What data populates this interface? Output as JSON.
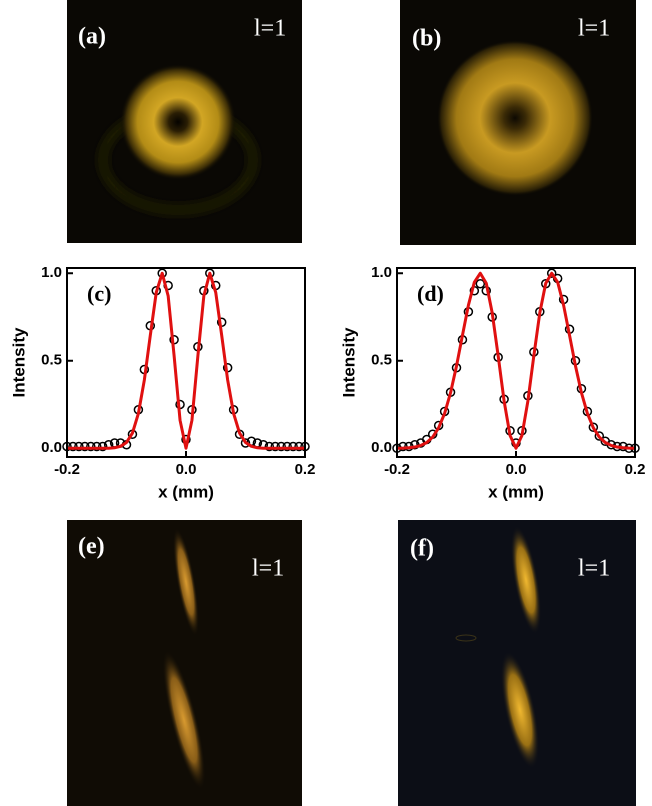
{
  "panels": [
    {
      "label": "(a)",
      "tag": "l=1"
    },
    {
      "label": "(b)",
      "tag": "l=1"
    },
    {
      "label": "(e)",
      "tag": "l=1"
    },
    {
      "label": "(f)",
      "tag": "l=1"
    }
  ],
  "chart_data": [
    {
      "type": "scatter",
      "panel_label": "(c)",
      "x_label": "x (mm)",
      "y_label": "Intensity",
      "xlim": [
        -0.2,
        0.2
      ],
      "ylim": [
        -0.05,
        1.03
      ],
      "xticks": [
        -0.2,
        {
          "value": 0,
          "label": "0.0"
        },
        0.2
      ],
      "yticks": [
        {
          "value": 0,
          "label": "0.0"
        },
        0.5,
        {
          "value": 1,
          "label": "1.0"
        }
      ],
      "series": [
        {
          "marker": "circle",
          "color": "#000000",
          "x": [
            -0.2,
            -0.19,
            -0.18,
            -0.17,
            -0.16,
            -0.15,
            -0.14,
            -0.13,
            -0.12,
            -0.11,
            -0.1,
            -0.09,
            -0.08,
            -0.07,
            -0.06,
            -0.05,
            -0.04,
            -0.03,
            -0.02,
            -0.01,
            0,
            0.01,
            0.02,
            0.03,
            0.04,
            0.05,
            0.06,
            0.07,
            0.08,
            0.09,
            0.1,
            0.11,
            0.12,
            0.13,
            0.14,
            0.15,
            0.16,
            0.17,
            0.18,
            0.19,
            0.2
          ],
          "values": [
            0.01,
            0.01,
            0.01,
            0.01,
            0.01,
            0.01,
            0.01,
            0.02,
            0.03,
            0.03,
            0.02,
            0.08,
            0.22,
            0.45,
            0.7,
            0.9,
            1.0,
            0.93,
            0.62,
            0.25,
            0.05,
            0.22,
            0.58,
            0.9,
            1.0,
            0.93,
            0.72,
            0.46,
            0.22,
            0.08,
            0.03,
            0.04,
            0.03,
            0.02,
            0.01,
            0.01,
            0.01,
            0.01,
            0.01,
            0.01,
            0.01
          ]
        },
        {
          "marker": "line",
          "color": "#e01010",
          "x": [
            -0.2,
            -0.19,
            -0.18,
            -0.17,
            -0.16,
            -0.15,
            -0.14,
            -0.13,
            -0.12,
            -0.11,
            -0.1,
            -0.09,
            -0.08,
            -0.07,
            -0.06,
            -0.05,
            -0.04,
            -0.03,
            -0.02,
            -0.01,
            0,
            0.01,
            0.02,
            0.03,
            0.04,
            0.05,
            0.06,
            0.07,
            0.08,
            0.09,
            0.1,
            0.11,
            0.12,
            0.13,
            0.14,
            0.15,
            0.16,
            0.17,
            0.18,
            0.19,
            0.2
          ],
          "values": [
            0,
            0,
            0,
            0,
            0,
            0,
            0,
            0,
            0.003,
            0.011,
            0.033,
            0.087,
            0.199,
            0.39,
            0.645,
            0.89,
            1.0,
            0.871,
            0.529,
            0.16,
            0,
            0.16,
            0.529,
            0.871,
            1.0,
            0.89,
            0.645,
            0.39,
            0.199,
            0.087,
            0.033,
            0.011,
            0.003,
            0,
            0,
            0,
            0,
            0,
            0,
            0,
            0
          ]
        }
      ]
    },
    {
      "type": "scatter",
      "panel_label": "(d)",
      "x_label": "x (mm)",
      "y_label": "Intensity",
      "xlim": [
        -0.2,
        0.2
      ],
      "ylim": [
        -0.05,
        1.03
      ],
      "xticks": [
        -0.2,
        {
          "value": 0,
          "label": "0.0"
        },
        0.2
      ],
      "yticks": [
        {
          "value": 0,
          "label": "0.0"
        },
        0.5,
        {
          "value": 1,
          "label": "1.0"
        }
      ],
      "series": [
        {
          "marker": "circle",
          "color": "#000000",
          "x": [
            -0.2,
            -0.19,
            -0.18,
            -0.17,
            -0.16,
            -0.15,
            -0.14,
            -0.13,
            -0.12,
            -0.11,
            -0.1,
            -0.09,
            -0.08,
            -0.07,
            -0.06,
            -0.05,
            -0.04,
            -0.03,
            -0.02,
            -0.01,
            0,
            0.01,
            0.02,
            0.03,
            0.04,
            0.05,
            0.06,
            0.07,
            0.08,
            0.09,
            0.1,
            0.11,
            0.12,
            0.13,
            0.14,
            0.15,
            0.16,
            0.17,
            0.18,
            0.19,
            0.2
          ],
          "values": [
            0,
            0.01,
            0.01,
            0.02,
            0.03,
            0.05,
            0.08,
            0.13,
            0.21,
            0.32,
            0.46,
            0.62,
            0.78,
            0.9,
            0.94,
            0.9,
            0.75,
            0.52,
            0.28,
            0.1,
            0.03,
            0.1,
            0.3,
            0.55,
            0.78,
            0.94,
            1.0,
            0.97,
            0.85,
            0.68,
            0.5,
            0.34,
            0.21,
            0.12,
            0.07,
            0.04,
            0.02,
            0.01,
            0.01,
            0,
            0
          ]
        },
        {
          "marker": "line",
          "color": "#e01010",
          "x": [
            -0.2,
            -0.19,
            -0.18,
            -0.17,
            -0.16,
            -0.15,
            -0.14,
            -0.13,
            -0.12,
            -0.11,
            -0.1,
            -0.09,
            -0.08,
            -0.07,
            -0.06,
            -0.05,
            -0.04,
            -0.03,
            -0.02,
            -0.01,
            0,
            0.01,
            0.02,
            0.03,
            0.04,
            0.05,
            0.06,
            0.07,
            0.08,
            0.09,
            0.1,
            0.11,
            0.12,
            0.13,
            0.14,
            0.15,
            0.16,
            0.17,
            0.18,
            0.19,
            0.2
          ],
          "values": [
            0,
            0.001,
            0.003,
            0.007,
            0.016,
            0.033,
            0.064,
            0.117,
            0.199,
            0.317,
            0.47,
            0.645,
            0.817,
            0.949,
            1.0,
            0.943,
            0.774,
            0.529,
            0.27,
            0.073,
            0,
            0.073,
            0.27,
            0.529,
            0.774,
            0.943,
            1.0,
            0.949,
            0.817,
            0.645,
            0.47,
            0.317,
            0.199,
            0.117,
            0.064,
            0.033,
            0.016,
            0.007,
            0.003,
            0.001,
            0
          ]
        }
      ]
    }
  ]
}
